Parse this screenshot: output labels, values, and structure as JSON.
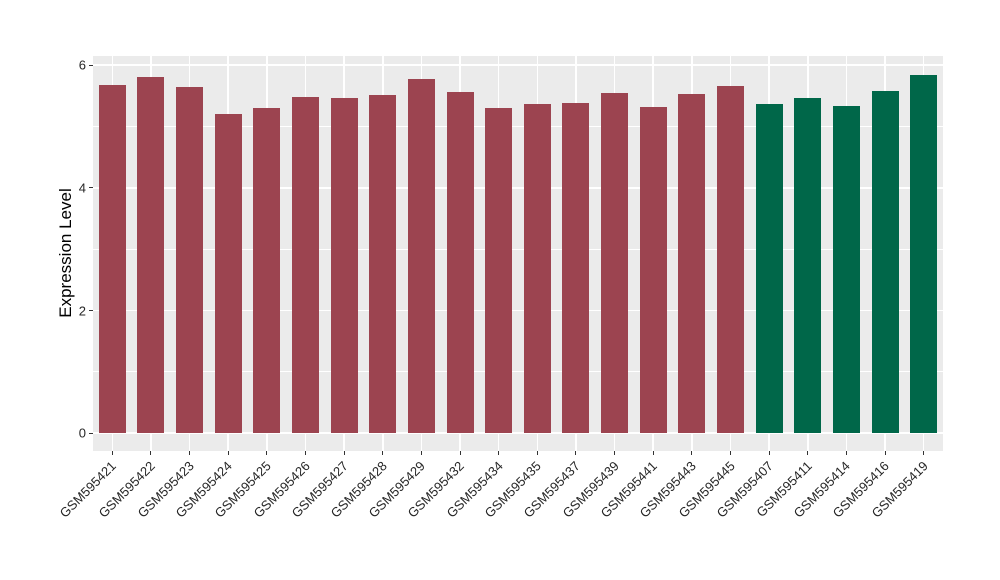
{
  "chart_data": {
    "type": "bar",
    "title": "",
    "xlabel": "",
    "ylabel": "Expression Level",
    "categories": [
      "GSM595421",
      "GSM595422",
      "GSM595423",
      "GSM595424",
      "GSM595425",
      "GSM595426",
      "GSM595427",
      "GSM595428",
      "GSM595429",
      "GSM595432",
      "GSM595434",
      "GSM595435",
      "GSM595437",
      "GSM595439",
      "GSM595441",
      "GSM595443",
      "GSM595445",
      "GSM595407",
      "GSM595411",
      "GSM595414",
      "GSM595416",
      "GSM595419"
    ],
    "values": [
      5.67,
      5.8,
      5.65,
      5.21,
      5.31,
      5.48,
      5.46,
      5.51,
      5.78,
      5.56,
      5.31,
      5.37,
      5.39,
      5.55,
      5.32,
      5.53,
      5.66,
      5.36,
      5.46,
      5.33,
      5.58,
      5.84
    ],
    "bar_colors": [
      "#9C4450",
      "#9C4450",
      "#9C4450",
      "#9C4450",
      "#9C4450",
      "#9C4450",
      "#9C4450",
      "#9C4450",
      "#9C4450",
      "#9C4450",
      "#9C4450",
      "#9C4450",
      "#9C4450",
      "#9C4450",
      "#9C4450",
      "#9C4450",
      "#9C4450",
      "#006749",
      "#006749",
      "#006749",
      "#006749",
      "#006749"
    ],
    "yticks": [
      0,
      2,
      4,
      6
    ],
    "yticks_minor": [
      1,
      3,
      5
    ],
    "ylim": [
      -0.29,
      6.15
    ],
    "bar_width_fraction": 0.7,
    "grid": true,
    "legend": "none",
    "x_label_angle_deg": 45,
    "colors": {
      "panel_background": "#EBEBEB",
      "grid": "#FFFFFF",
      "axis_text": "#262626",
      "tick_mark": "#333333",
      "group_red": "#9C4450",
      "group_green": "#006749"
    }
  }
}
